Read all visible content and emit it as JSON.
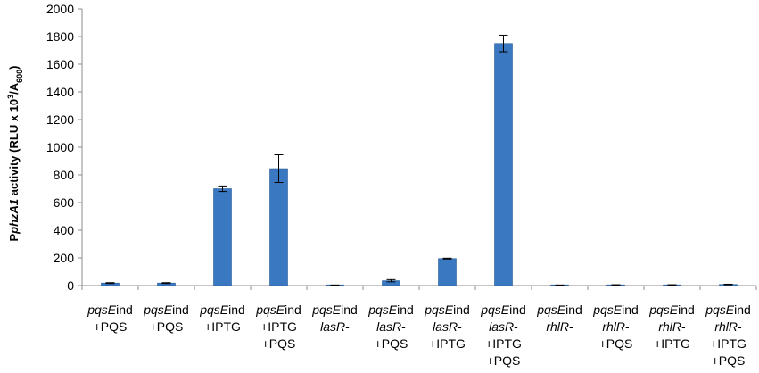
{
  "chart_data": {
    "type": "bar",
    "title": "",
    "ylabel": {
      "p_prefix": "P",
      "gene": "phzA1",
      "text_mid": " activity (RLU x 10",
      "exp": "3",
      "text_slash": "/A",
      "sub": "600",
      "text_end": ")"
    },
    "ylim": [
      0,
      2000
    ],
    "yticks": [
      0,
      200,
      400,
      600,
      800,
      1000,
      1200,
      1400,
      1600,
      1800,
      2000
    ],
    "bar_color": "#3a78c1",
    "bar_edge_color": "#2a5d97",
    "categories": [
      {
        "lines": [
          {
            "it": "pqsE",
            "rest": "ind"
          },
          {
            "it": "",
            "rest": "+PQS"
          }
        ]
      },
      {
        "lines": [
          {
            "it": "pqsE",
            "rest": "ind"
          },
          {
            "it": "",
            "rest": "+PQS"
          }
        ]
      },
      {
        "lines": [
          {
            "it": "pqsE",
            "rest": "ind"
          },
          {
            "it": "",
            "rest": "+IPTG"
          }
        ]
      },
      {
        "lines": [
          {
            "it": "pqsE",
            "rest": "ind"
          },
          {
            "it": "",
            "rest": "+IPTG"
          },
          {
            "it": "",
            "rest": "+PQS"
          }
        ]
      },
      {
        "lines": [
          {
            "it": "pqsE",
            "rest": "ind"
          },
          {
            "it": "lasR",
            "rest": "-"
          }
        ]
      },
      {
        "lines": [
          {
            "it": "pqsE",
            "rest": "ind"
          },
          {
            "it": "lasR",
            "rest": "-"
          },
          {
            "it": "",
            "rest": "+PQS"
          }
        ]
      },
      {
        "lines": [
          {
            "it": "pqsE",
            "rest": "ind"
          },
          {
            "it": "lasR",
            "rest": "-"
          },
          {
            "it": "",
            "rest": "+IPTG"
          }
        ]
      },
      {
        "lines": [
          {
            "it": "pqsE",
            "rest": "ind"
          },
          {
            "it": "lasR",
            "rest": "-"
          },
          {
            "it": "",
            "rest": "+IPTG"
          },
          {
            "it": "",
            "rest": "+PQS"
          }
        ]
      },
      {
        "lines": [
          {
            "it": "pqsE",
            "rest": "ind"
          },
          {
            "it": "rhlR",
            "rest": "-"
          }
        ]
      },
      {
        "lines": [
          {
            "it": "pqsE",
            "rest": "ind"
          },
          {
            "it": "rhlR",
            "rest": "-"
          },
          {
            "it": "",
            "rest": "+PQS"
          }
        ]
      },
      {
        "lines": [
          {
            "it": "pqsE",
            "rest": "ind"
          },
          {
            "it": "rhlR",
            "rest": "-"
          },
          {
            "it": "",
            "rest": "+IPTG"
          }
        ]
      },
      {
        "lines": [
          {
            "it": "pqsE",
            "rest": "ind"
          },
          {
            "it": "rhlR",
            "rest": "-"
          },
          {
            "it": "",
            "rest": "+IPTG"
          },
          {
            "it": "",
            "rest": "+PQS"
          }
        ]
      }
    ],
    "values": [
      18,
      18,
      700,
      845,
      3,
      35,
      195,
      1750,
      3,
      5,
      5,
      8
    ],
    "errors": [
      3,
      3,
      20,
      100,
      1,
      8,
      3,
      60,
      1,
      1,
      1,
      2
    ]
  }
}
